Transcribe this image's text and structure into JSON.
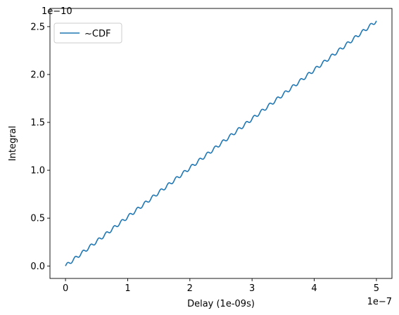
{
  "chart_data": {
    "type": "line",
    "title": "",
    "xlabel": "Delay (1e-09s)",
    "ylabel": "Integral",
    "x_offset_label": "1e−7",
    "y_offset_label": "1e−10",
    "xlim": [
      -2.5e-08,
      5.25e-07
    ],
    "ylim": [
      -1.3e-11,
      2.69e-10
    ],
    "xticks": [
      0,
      1e-07,
      2e-07,
      3e-07,
      4e-07,
      5e-07
    ],
    "xtick_labels": [
      "0",
      "1",
      "2",
      "3",
      "4",
      "5"
    ],
    "yticks": [
      0,
      5e-11,
      1e-10,
      1.5e-10,
      2e-10,
      2.5e-10
    ],
    "ytick_labels": [
      "0.0",
      "0.5",
      "1.0",
      "1.5",
      "2.0",
      "2.5"
    ],
    "grid": false,
    "legend_position": "top-left",
    "series": [
      {
        "name": "~CDF",
        "color": "#1f77b4",
        "x": [
          0,
          2.5e-08,
          5e-08,
          7.5e-08,
          1e-07,
          1.25e-07,
          1.5e-07,
          1.75e-07,
          2e-07,
          2.25e-07,
          2.5e-07,
          2.75e-07,
          3e-07,
          3.25e-07,
          3.5e-07,
          3.75e-07,
          4e-07,
          4.25e-07,
          4.5e-07,
          4.75e-07,
          5e-07
        ],
        "values": [
          0,
          1.28e-11,
          2.56e-11,
          3.84e-11,
          5.12e-11,
          6.4e-11,
          7.68e-11,
          8.96e-11,
          1.024e-10,
          1.152e-10,
          1.28e-10,
          1.408e-10,
          1.536e-10,
          1.664e-10,
          1.792e-10,
          1.92e-10,
          2.048e-10,
          2.176e-10,
          2.304e-10,
          2.432e-10,
          2.56e-10
        ],
        "ripple_cycles": 40
      }
    ]
  }
}
